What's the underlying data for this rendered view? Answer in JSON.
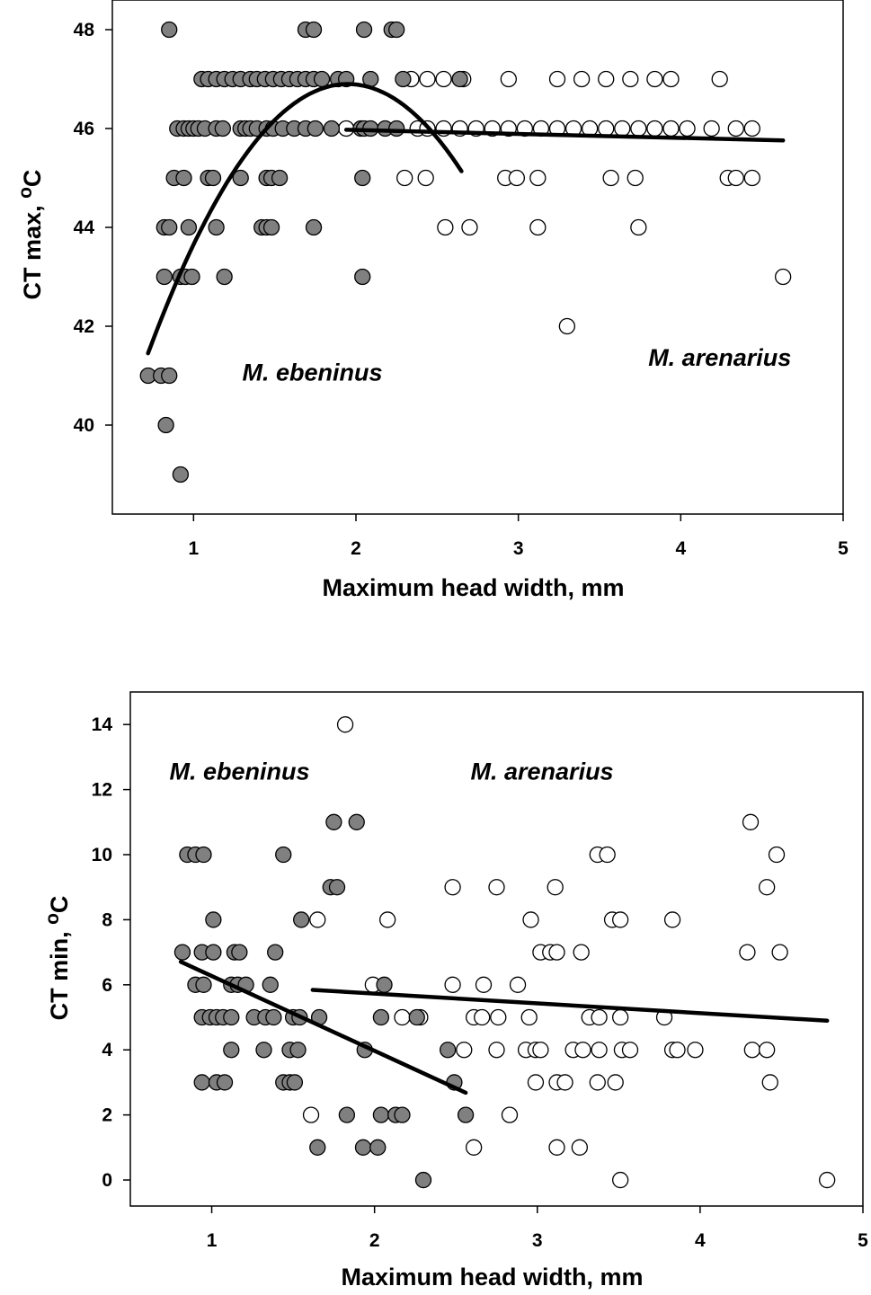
{
  "chart_data": [
    {
      "type": "scatter",
      "xlabel": "Maximum head width, mm",
      "ylabel": "CT max, ",
      "ylabel_sup": "o",
      "ylabel_unit": "C",
      "xlim": [
        0.5,
        5
      ],
      "ylim": [
        38.2,
        48.6
      ],
      "xticks": [
        1,
        2,
        3,
        4,
        5
      ],
      "yticks": [
        40,
        42,
        44,
        46,
        48
      ],
      "annotations": [
        {
          "text": "M. ebeninus",
          "x": 1.3,
          "y": 40.9
        },
        {
          "text": "M. arenarius",
          "x": 3.8,
          "y": 41.2
        }
      ],
      "series": [
        {
          "marker": "filled",
          "color": "#808080",
          "points": [
            [
              0.72,
              41
            ],
            [
              0.8,
              41
            ],
            [
              0.85,
              41
            ],
            [
              0.83,
              40
            ],
            [
              0.92,
              39
            ],
            [
              0.85,
              48
            ],
            [
              0.82,
              43
            ],
            [
              0.92,
              43
            ],
            [
              0.95,
              43
            ],
            [
              0.99,
              43
            ],
            [
              1.19,
              43
            ],
            [
              2.04,
              43
            ],
            [
              0.82,
              44
            ],
            [
              0.85,
              44
            ],
            [
              0.97,
              44
            ],
            [
              1.14,
              44
            ],
            [
              1.42,
              44
            ],
            [
              1.45,
              44
            ],
            [
              1.48,
              44
            ],
            [
              1.74,
              44
            ],
            [
              0.88,
              45
            ],
            [
              0.94,
              45
            ],
            [
              1.09,
              45
            ],
            [
              1.12,
              45
            ],
            [
              1.29,
              45
            ],
            [
              1.45,
              45
            ],
            [
              1.48,
              45
            ],
            [
              1.53,
              45
            ],
            [
              2.04,
              45
            ],
            [
              0.9,
              46
            ],
            [
              0.94,
              46
            ],
            [
              0.97,
              46
            ],
            [
              1.0,
              46
            ],
            [
              1.03,
              46
            ],
            [
              1.07,
              46
            ],
            [
              1.14,
              46
            ],
            [
              1.18,
              46
            ],
            [
              1.29,
              46
            ],
            [
              1.32,
              46
            ],
            [
              1.35,
              46
            ],
            [
              1.39,
              46
            ],
            [
              1.45,
              46
            ],
            [
              1.49,
              46
            ],
            [
              1.55,
              46
            ],
            [
              1.62,
              46
            ],
            [
              1.69,
              46
            ],
            [
              1.75,
              46
            ],
            [
              1.85,
              46
            ],
            [
              2.03,
              46
            ],
            [
              2.05,
              46
            ],
            [
              2.09,
              46
            ],
            [
              2.18,
              46
            ],
            [
              2.25,
              46
            ],
            [
              1.05,
              47
            ],
            [
              1.09,
              47
            ],
            [
              1.14,
              47
            ],
            [
              1.19,
              47
            ],
            [
              1.24,
              47
            ],
            [
              1.29,
              47
            ],
            [
              1.35,
              47
            ],
            [
              1.39,
              47
            ],
            [
              1.44,
              47
            ],
            [
              1.49,
              47
            ],
            [
              1.54,
              47
            ],
            [
              1.59,
              47
            ],
            [
              1.64,
              47
            ],
            [
              1.69,
              47
            ],
            [
              1.74,
              47
            ],
            [
              1.79,
              47
            ],
            [
              1.89,
              47
            ],
            [
              1.94,
              47
            ],
            [
              2.09,
              47
            ],
            [
              2.29,
              47
            ],
            [
              2.64,
              47
            ],
            [
              1.69,
              48
            ],
            [
              1.74,
              48
            ],
            [
              2.05,
              48
            ],
            [
              2.22,
              48
            ],
            [
              2.25,
              48
            ]
          ]
        },
        {
          "marker": "open",
          "color": "#ffffff",
          "points": [
            [
              1.94,
              46
            ],
            [
              2.38,
              46
            ],
            [
              2.44,
              46
            ],
            [
              2.54,
              46
            ],
            [
              2.64,
              46
            ],
            [
              2.74,
              46
            ],
            [
              2.84,
              46
            ],
            [
              2.94,
              46
            ],
            [
              3.04,
              46
            ],
            [
              3.14,
              46
            ],
            [
              3.24,
              46
            ],
            [
              3.34,
              46
            ],
            [
              3.44,
              46
            ],
            [
              3.54,
              46
            ],
            [
              3.64,
              46
            ],
            [
              3.74,
              46
            ],
            [
              3.84,
              46
            ],
            [
              3.94,
              46
            ],
            [
              4.04,
              46
            ],
            [
              4.19,
              46
            ],
            [
              4.34,
              46
            ],
            [
              4.44,
              46
            ],
            [
              2.34,
              47
            ],
            [
              2.44,
              47
            ],
            [
              2.54,
              47
            ],
            [
              2.66,
              47
            ],
            [
              2.94,
              47
            ],
            [
              3.24,
              47
            ],
            [
              3.39,
              47
            ],
            [
              3.54,
              47
            ],
            [
              3.69,
              47
            ],
            [
              3.84,
              47
            ],
            [
              3.94,
              47
            ],
            [
              4.24,
              47
            ],
            [
              2.3,
              45
            ],
            [
              2.43,
              45
            ],
            [
              2.92,
              45
            ],
            [
              2.99,
              45
            ],
            [
              3.12,
              45
            ],
            [
              3.57,
              45
            ],
            [
              3.72,
              45
            ],
            [
              4.29,
              45
            ],
            [
              4.34,
              45
            ],
            [
              4.44,
              45
            ],
            [
              2.55,
              44
            ],
            [
              2.7,
              44
            ],
            [
              3.12,
              44
            ],
            [
              3.74,
              44
            ],
            [
              4.63,
              43
            ],
            [
              3.3,
              42
            ]
          ]
        }
      ],
      "fits": [
        {
          "type": "quadratic",
          "vertex": [
            1.95,
            46.9
          ],
          "a": -3.6,
          "x_range": [
            0.72,
            2.65
          ]
        },
        {
          "type": "linear",
          "slope": -0.08,
          "intercept": 46.13,
          "x_range": [
            1.94,
            4.63
          ]
        }
      ]
    },
    {
      "type": "scatter",
      "xlabel": "Maximum head width, mm",
      "ylabel": "CT min, ",
      "ylabel_sup": "o",
      "ylabel_unit": "C",
      "xlim": [
        0.5,
        5
      ],
      "ylim": [
        -0.8,
        15.0
      ],
      "xticks": [
        1,
        2,
        3,
        4,
        5
      ],
      "yticks": [
        0,
        2,
        4,
        6,
        8,
        10,
        12,
        14
      ],
      "annotations": [
        {
          "text": "M. ebeninus",
          "x": 0.74,
          "y": 12.3
        },
        {
          "text": "M. arenarius",
          "x": 2.59,
          "y": 12.3
        }
      ],
      "series": [
        {
          "marker": "filled",
          "color": "#808080",
          "points": [
            [
              0.85,
              10
            ],
            [
              0.9,
              10
            ],
            [
              0.95,
              10
            ],
            [
              1.44,
              10
            ],
            [
              1.75,
              11
            ],
            [
              1.89,
              11
            ],
            [
              1.73,
              9
            ],
            [
              1.77,
              9
            ],
            [
              1.01,
              8
            ],
            [
              1.55,
              8
            ],
            [
              0.82,
              7
            ],
            [
              0.94,
              7
            ],
            [
              1.01,
              7
            ],
            [
              1.14,
              7
            ],
            [
              1.17,
              7
            ],
            [
              1.39,
              7
            ],
            [
              0.9,
              6
            ],
            [
              0.95,
              6
            ],
            [
              1.12,
              6
            ],
            [
              1.16,
              6
            ],
            [
              1.21,
              6
            ],
            [
              1.36,
              6
            ],
            [
              2.06,
              6
            ],
            [
              0.94,
              5
            ],
            [
              0.99,
              5
            ],
            [
              1.03,
              5
            ],
            [
              1.07,
              5
            ],
            [
              1.12,
              5
            ],
            [
              1.26,
              5
            ],
            [
              1.33,
              5
            ],
            [
              1.38,
              5
            ],
            [
              1.5,
              5
            ],
            [
              1.54,
              5
            ],
            [
              1.66,
              5
            ],
            [
              2.04,
              5
            ],
            [
              2.26,
              5
            ],
            [
              1.12,
              4
            ],
            [
              1.32,
              4
            ],
            [
              1.48,
              4
            ],
            [
              1.53,
              4
            ],
            [
              1.94,
              4
            ],
            [
              2.45,
              4
            ],
            [
              0.94,
              3
            ],
            [
              1.03,
              3
            ],
            [
              1.08,
              3
            ],
            [
              1.44,
              3
            ],
            [
              1.48,
              3
            ],
            [
              1.51,
              3
            ],
            [
              2.49,
              3
            ],
            [
              1.83,
              2
            ],
            [
              2.04,
              2
            ],
            [
              2.13,
              2
            ],
            [
              2.17,
              2
            ],
            [
              2.56,
              2
            ],
            [
              1.65,
              1
            ],
            [
              1.93,
              1
            ],
            [
              2.02,
              1
            ],
            [
              2.3,
              0
            ]
          ]
        },
        {
          "marker": "open",
          "color": "#ffffff",
          "points": [
            [
              1.82,
              14
            ],
            [
              4.31,
              11
            ],
            [
              3.37,
              10
            ],
            [
              3.43,
              10
            ],
            [
              4.47,
              10
            ],
            [
              2.48,
              9
            ],
            [
              2.75,
              9
            ],
            [
              3.11,
              9
            ],
            [
              4.41,
              9
            ],
            [
              1.65,
              8
            ],
            [
              2.08,
              8
            ],
            [
              2.96,
              8
            ],
            [
              3.46,
              8
            ],
            [
              3.51,
              8
            ],
            [
              3.83,
              8
            ],
            [
              3.02,
              7
            ],
            [
              3.08,
              7
            ],
            [
              3.12,
              7
            ],
            [
              3.27,
              7
            ],
            [
              4.29,
              7
            ],
            [
              4.49,
              7
            ],
            [
              1.99,
              6
            ],
            [
              2.48,
              6
            ],
            [
              2.67,
              6
            ],
            [
              2.88,
              6
            ],
            [
              2.17,
              5
            ],
            [
              2.28,
              5
            ],
            [
              2.61,
              5
            ],
            [
              2.66,
              5
            ],
            [
              2.76,
              5
            ],
            [
              2.95,
              5
            ],
            [
              3.32,
              5
            ],
            [
              3.38,
              5
            ],
            [
              3.51,
              5
            ],
            [
              3.78,
              5
            ],
            [
              2.55,
              4
            ],
            [
              2.75,
              4
            ],
            [
              2.93,
              4
            ],
            [
              2.99,
              4
            ],
            [
              3.02,
              4
            ],
            [
              3.22,
              4
            ],
            [
              3.28,
              4
            ],
            [
              3.38,
              4
            ],
            [
              3.52,
              4
            ],
            [
              3.57,
              4
            ],
            [
              3.83,
              4
            ],
            [
              3.86,
              4
            ],
            [
              3.97,
              4
            ],
            [
              4.32,
              4
            ],
            [
              4.41,
              4
            ],
            [
              2.99,
              3
            ],
            [
              3.12,
              3
            ],
            [
              3.17,
              3
            ],
            [
              3.37,
              3
            ],
            [
              3.48,
              3
            ],
            [
              4.43,
              3
            ],
            [
              1.61,
              2
            ],
            [
              2.83,
              2
            ],
            [
              2.61,
              1
            ],
            [
              3.12,
              1
            ],
            [
              3.26,
              1
            ],
            [
              3.51,
              0
            ],
            [
              4.78,
              0
            ]
          ]
        }
      ],
      "fits": [
        {
          "type": "linear",
          "slope": -2.3,
          "intercept": 8.57,
          "x_range": [
            0.81,
            2.56
          ]
        },
        {
          "type": "linear",
          "slope": -0.3,
          "intercept": 6.33,
          "x_range": [
            1.62,
            4.78
          ]
        }
      ]
    }
  ]
}
